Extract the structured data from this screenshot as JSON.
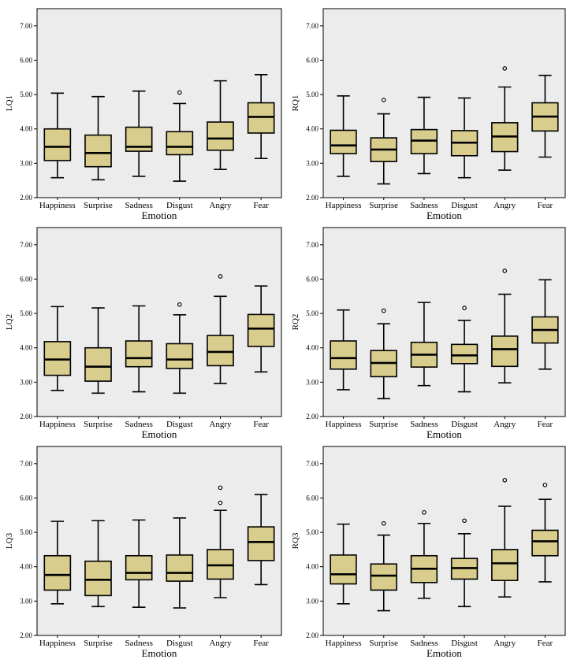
{
  "chart_data": [
    {
      "type": "boxplot",
      "id": "LQ1",
      "ylabel": "LQ1",
      "xlabel": "Emotion",
      "categories": [
        "Happiness",
        "Surprise",
        "Sadness",
        "Disgust",
        "Angry",
        "Fear"
      ],
      "ylim": [
        2.0,
        7.5
      ],
      "yticks": [
        "2.00",
        "3.00",
        "4.00",
        "5.00",
        "6.00",
        "7.00"
      ],
      "boxes": [
        {
          "min": 2.58,
          "q1": 3.08,
          "median": 3.48,
          "q3": 4.0,
          "max": 5.04,
          "outliers": []
        },
        {
          "min": 2.52,
          "q1": 2.9,
          "median": 3.3,
          "q3": 3.82,
          "max": 4.94,
          "outliers": []
        },
        {
          "min": 2.62,
          "q1": 3.35,
          "median": 3.48,
          "q3": 4.05,
          "max": 5.1,
          "outliers": []
        },
        {
          "min": 2.48,
          "q1": 3.25,
          "median": 3.48,
          "q3": 3.92,
          "max": 4.74,
          "outliers": [
            5.06
          ]
        },
        {
          "min": 2.82,
          "q1": 3.38,
          "median": 3.72,
          "q3": 4.2,
          "max": 5.4,
          "outliers": []
        },
        {
          "min": 3.14,
          "q1": 3.88,
          "median": 4.35,
          "q3": 4.76,
          "max": 5.58,
          "outliers": []
        }
      ]
    },
    {
      "type": "boxplot",
      "id": "RQ1",
      "ylabel": "RQ1",
      "xlabel": "Emotion",
      "categories": [
        "Happiness",
        "Surprise",
        "Sadness",
        "Disgust",
        "Angry",
        "Fear"
      ],
      "ylim": [
        2.0,
        7.5
      ],
      "yticks": [
        "2.00",
        "3.00",
        "4.00",
        "5.00",
        "6.00",
        "7.00"
      ],
      "boxes": [
        {
          "min": 2.62,
          "q1": 3.28,
          "median": 3.52,
          "q3": 3.96,
          "max": 4.96,
          "outliers": []
        },
        {
          "min": 2.4,
          "q1": 3.05,
          "median": 3.4,
          "q3": 3.74,
          "max": 4.44,
          "outliers": [
            4.84
          ]
        },
        {
          "min": 2.7,
          "q1": 3.28,
          "median": 3.66,
          "q3": 3.98,
          "max": 4.92,
          "outliers": []
        },
        {
          "min": 2.58,
          "q1": 3.22,
          "median": 3.6,
          "q3": 3.95,
          "max": 4.9,
          "outliers": []
        },
        {
          "min": 2.8,
          "q1": 3.34,
          "median": 3.78,
          "q3": 4.18,
          "max": 5.22,
          "outliers": [
            5.76
          ]
        },
        {
          "min": 3.18,
          "q1": 3.94,
          "median": 4.36,
          "q3": 4.76,
          "max": 5.56,
          "outliers": []
        }
      ]
    },
    {
      "type": "boxplot",
      "id": "LQ2",
      "ylabel": "LQ2",
      "xlabel": "Emotion",
      "categories": [
        "Happiness",
        "Surprise",
        "Sadness",
        "Disgust",
        "Angry",
        "Fear"
      ],
      "ylim": [
        2.0,
        7.5
      ],
      "yticks": [
        "2.00",
        "3.00",
        "4.00",
        "5.00",
        "6.00",
        "7.00"
      ],
      "boxes": [
        {
          "min": 2.76,
          "q1": 3.2,
          "median": 3.66,
          "q3": 4.18,
          "max": 5.2,
          "outliers": []
        },
        {
          "min": 2.68,
          "q1": 3.03,
          "median": 3.45,
          "q3": 4.0,
          "max": 5.16,
          "outliers": []
        },
        {
          "min": 2.72,
          "q1": 3.45,
          "median": 3.7,
          "q3": 4.2,
          "max": 5.22,
          "outliers": []
        },
        {
          "min": 2.68,
          "q1": 3.4,
          "median": 3.66,
          "q3": 4.12,
          "max": 4.96,
          "outliers": [
            5.26
          ]
        },
        {
          "min": 2.96,
          "q1": 3.48,
          "median": 3.88,
          "q3": 4.36,
          "max": 5.5,
          "outliers": [
            6.08
          ]
        },
        {
          "min": 3.3,
          "q1": 4.04,
          "median": 4.56,
          "q3": 4.97,
          "max": 5.8,
          "outliers": []
        }
      ]
    },
    {
      "type": "boxplot",
      "id": "RQ2",
      "ylabel": "RQ2",
      "xlabel": "Emotion",
      "categories": [
        "Happiness",
        "Surprise",
        "Sadness",
        "Disgust",
        "Angry",
        "Fear"
      ],
      "ylim": [
        2.0,
        7.5
      ],
      "yticks": [
        "2.00",
        "3.00",
        "4.00",
        "5.00",
        "6.00",
        "7.00"
      ],
      "boxes": [
        {
          "min": 2.78,
          "q1": 3.38,
          "median": 3.7,
          "q3": 4.2,
          "max": 5.1,
          "outliers": []
        },
        {
          "min": 2.52,
          "q1": 3.16,
          "median": 3.56,
          "q3": 3.92,
          "max": 4.7,
          "outliers": [
            5.08
          ]
        },
        {
          "min": 2.9,
          "q1": 3.44,
          "median": 3.8,
          "q3": 4.16,
          "max": 5.32,
          "outliers": []
        },
        {
          "min": 2.72,
          "q1": 3.54,
          "median": 3.78,
          "q3": 4.1,
          "max": 4.8,
          "outliers": [
            5.16
          ]
        },
        {
          "min": 2.98,
          "q1": 3.46,
          "median": 3.96,
          "q3": 4.34,
          "max": 5.56,
          "outliers": [
            6.24
          ]
        },
        {
          "min": 3.38,
          "q1": 4.14,
          "median": 4.52,
          "q3": 4.9,
          "max": 5.98,
          "outliers": []
        }
      ]
    },
    {
      "type": "boxplot",
      "id": "LQ3",
      "ylabel": "LQ3",
      "xlabel": "Emotion",
      "categories": [
        "Happiness",
        "Surprise",
        "Sadness",
        "Disgust",
        "Angry",
        "Fear"
      ],
      "ylim": [
        2.0,
        7.5
      ],
      "yticks": [
        "2.00",
        "3.00",
        "4.00",
        "5.00",
        "6.00",
        "7.00"
      ],
      "boxes": [
        {
          "min": 2.92,
          "q1": 3.32,
          "median": 3.76,
          "q3": 4.32,
          "max": 5.32,
          "outliers": []
        },
        {
          "min": 2.84,
          "q1": 3.16,
          "median": 3.62,
          "q3": 4.16,
          "max": 5.34,
          "outliers": []
        },
        {
          "min": 2.82,
          "q1": 3.62,
          "median": 3.82,
          "q3": 4.32,
          "max": 5.36,
          "outliers": []
        },
        {
          "min": 2.8,
          "q1": 3.58,
          "median": 3.82,
          "q3": 4.34,
          "max": 5.42,
          "outliers": []
        },
        {
          "min": 3.1,
          "q1": 3.64,
          "median": 4.04,
          "q3": 4.5,
          "max": 5.64,
          "outliers": [
            5.86,
            6.3
          ]
        },
        {
          "min": 3.48,
          "q1": 4.18,
          "median": 4.72,
          "q3": 5.16,
          "max": 6.1,
          "outliers": []
        }
      ]
    },
    {
      "type": "boxplot",
      "id": "RQ3",
      "ylabel": "RQ3",
      "xlabel": "Emotion",
      "categories": [
        "Happiness",
        "Surprise",
        "Sadness",
        "Disgust",
        "Angry",
        "Fear"
      ],
      "ylim": [
        2.0,
        7.5
      ],
      "yticks": [
        "2.00",
        "3.00",
        "4.00",
        "5.00",
        "6.00",
        "7.00"
      ],
      "boxes": [
        {
          "min": 2.92,
          "q1": 3.5,
          "median": 3.78,
          "q3": 4.34,
          "max": 5.24,
          "outliers": []
        },
        {
          "min": 2.72,
          "q1": 3.32,
          "median": 3.74,
          "q3": 4.08,
          "max": 4.92,
          "outliers": [
            5.26
          ]
        },
        {
          "min": 3.08,
          "q1": 3.54,
          "median": 3.94,
          "q3": 4.32,
          "max": 5.26,
          "outliers": [
            5.58
          ]
        },
        {
          "min": 2.84,
          "q1": 3.64,
          "median": 3.96,
          "q3": 4.24,
          "max": 4.96,
          "outliers": [
            5.34
          ]
        },
        {
          "min": 3.12,
          "q1": 3.6,
          "median": 4.1,
          "q3": 4.5,
          "max": 5.76,
          "outliers": [
            6.52
          ]
        },
        {
          "min": 3.56,
          "q1": 4.32,
          "median": 4.74,
          "q3": 5.06,
          "max": 5.96,
          "outliers": [
            6.38
          ]
        }
      ]
    }
  ],
  "colors": {
    "box_fill": "#d8cd8c",
    "box_stroke": "#000000",
    "plot_background": "#ececec",
    "median_stroke": "#000000"
  }
}
